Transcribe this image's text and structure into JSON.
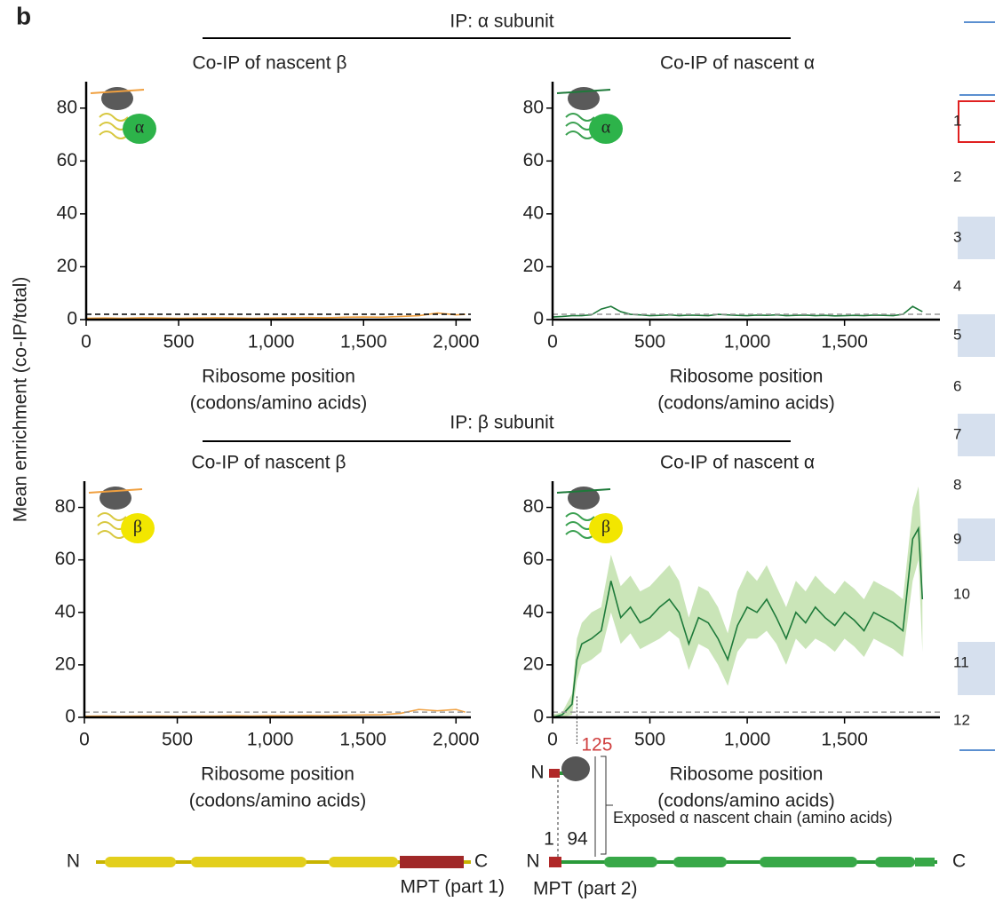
{
  "panel_label": "b",
  "groups": [
    "IP: α subunit",
    "IP: β subunit"
  ],
  "ylabel": "Mean enrichment (co-IP/total)",
  "chart_data": [
    {
      "type": "line",
      "title": "Co-IP of nascent β",
      "xlabel": [
        "Ribosome position",
        "(codons/amino acids)"
      ],
      "icon_label": "α",
      "icon_color": "#2db34a",
      "x": [
        0,
        100,
        200,
        300,
        400,
        500,
        600,
        700,
        800,
        900,
        1000,
        1100,
        1200,
        1300,
        1400,
        1500,
        1600,
        1700,
        1800,
        1900,
        2000,
        2050
      ],
      "series": [
        {
          "color": "#f0a040",
          "values": [
            0.5,
            0.6,
            0.5,
            0.7,
            0.6,
            0.5,
            0.6,
            0.7,
            0.6,
            0.5,
            0.6,
            0.7,
            0.8,
            0.7,
            0.9,
            1.0,
            0.9,
            1.2,
            1.5,
            2.5,
            1.8,
            2.0
          ]
        }
      ],
      "reference_line": 2,
      "reference_color": "#000000",
      "xlim": [
        0,
        2080
      ],
      "ylim": [
        0,
        90
      ],
      "xticks": [
        0,
        500,
        {
          "value": 1000,
          "label": "1,000"
        },
        {
          "value": 1500,
          "label": "1,500"
        },
        {
          "value": 2000,
          "label": "2,000"
        }
      ],
      "yticks": [
        0,
        20,
        40,
        60,
        80
      ]
    },
    {
      "type": "line",
      "title": "Co-IP of nascent α",
      "xlabel": [
        "Ribosome position",
        "(codons/amino acids)"
      ],
      "icon_label": "α",
      "icon_color": "#2db34a",
      "x": [
        0,
        50,
        100,
        150,
        200,
        250,
        300,
        350,
        400,
        450,
        500,
        550,
        600,
        650,
        700,
        750,
        800,
        850,
        900,
        950,
        1000,
        1050,
        1100,
        1150,
        1200,
        1250,
        1300,
        1350,
        1400,
        1450,
        1500,
        1550,
        1600,
        1650,
        1700,
        1750,
        1800,
        1850,
        1900
      ],
      "series": [
        {
          "color": "#1e7a3a",
          "values": [
            1,
            1.2,
            1.5,
            1.5,
            1.8,
            4,
            5,
            3,
            2,
            1.8,
            1.5,
            1.6,
            1.8,
            1.5,
            1.7,
            1.6,
            1.5,
            2,
            1.8,
            1.6,
            1.5,
            1.7,
            1.6,
            1.8,
            1.5,
            1.6,
            1.7,
            1.5,
            1.6,
            1.4,
            1.5,
            1.6,
            1.5,
            1.7,
            1.6,
            1.5,
            2,
            5,
            3
          ]
        }
      ],
      "reference_line": 2,
      "reference_color": "#999999",
      "xlim": [
        0,
        1990
      ],
      "ylim": [
        0,
        90
      ],
      "xticks": [
        0,
        500,
        {
          "value": 1000,
          "label": "1,000"
        },
        {
          "value": 1500,
          "label": "1,500"
        }
      ],
      "yticks": [
        0,
        20,
        40,
        60,
        80
      ]
    },
    {
      "type": "line",
      "title": "Co-IP of nascent β",
      "xlabel": [
        "Ribosome position",
        "(codons/amino acids)"
      ],
      "icon_label": "β",
      "icon_color": "#f2e600",
      "x": [
        0,
        100,
        200,
        300,
        400,
        500,
        600,
        700,
        800,
        900,
        1000,
        1100,
        1200,
        1300,
        1400,
        1500,
        1600,
        1700,
        1800,
        1900,
        2000,
        2050
      ],
      "series": [
        {
          "color": "#f0a040",
          "values": [
            0.4,
            0.5,
            0.4,
            0.5,
            0.5,
            0.4,
            0.5,
            0.5,
            0.6,
            0.5,
            0.6,
            0.6,
            0.7,
            0.6,
            0.8,
            0.9,
            1.0,
            1.5,
            3,
            2.5,
            3,
            2
          ]
        }
      ],
      "reference_line": 2,
      "reference_color": "#999999",
      "xlim": [
        0,
        2080
      ],
      "ylim": [
        0,
        90
      ],
      "xticks": [
        0,
        500,
        {
          "value": 1000,
          "label": "1,000"
        },
        {
          "value": 1500,
          "label": "1,500"
        },
        {
          "value": 2000,
          "label": "2,000"
        }
      ],
      "yticks": [
        0,
        20,
        40,
        60,
        80
      ]
    },
    {
      "type": "line",
      "title": "Co-IP of nascent α",
      "xlabel": [
        "Ribosome position",
        "(codons/amino acids)"
      ],
      "icon_label": "β",
      "icon_color": "#f2e600",
      "x": [
        0,
        50,
        100,
        125,
        150,
        200,
        250,
        300,
        350,
        400,
        450,
        500,
        550,
        600,
        650,
        700,
        750,
        800,
        850,
        900,
        950,
        1000,
        1050,
        1100,
        1150,
        1200,
        1250,
        1300,
        1350,
        1400,
        1450,
        1500,
        1550,
        1600,
        1650,
        1700,
        1750,
        1800,
        1850,
        1880,
        1900
      ],
      "series": [
        {
          "color": "#1e7a3a",
          "band_color": "#b8dca0",
          "values": [
            0,
            1,
            5,
            22,
            28,
            30,
            33,
            52,
            38,
            42,
            36,
            38,
            42,
            45,
            40,
            28,
            38,
            36,
            30,
            22,
            35,
            42,
            40,
            45,
            38,
            30,
            40,
            36,
            42,
            38,
            35,
            40,
            37,
            33,
            40,
            38,
            36,
            33,
            68,
            72,
            45
          ],
          "lower": [
            0,
            0,
            1,
            14,
            20,
            22,
            25,
            40,
            28,
            32,
            26,
            28,
            30,
            33,
            30,
            18,
            28,
            26,
            20,
            12,
            25,
            30,
            30,
            33,
            28,
            20,
            30,
            26,
            30,
            28,
            25,
            30,
            27,
            23,
            30,
            28,
            26,
            23,
            52,
            60,
            25
          ],
          "upper": [
            1,
            2,
            9,
            30,
            36,
            40,
            42,
            62,
            50,
            54,
            48,
            50,
            54,
            58,
            52,
            38,
            50,
            48,
            42,
            32,
            48,
            56,
            52,
            58,
            50,
            42,
            52,
            48,
            54,
            50,
            47,
            52,
            49,
            45,
            52,
            50,
            48,
            45,
            80,
            88,
            62
          ]
        }
      ],
      "reference_line": 2,
      "reference_color": "#999999",
      "marker": 125,
      "marker_color": "#d04040",
      "xlim": [
        0,
        1990
      ],
      "ylim": [
        0,
        90
      ],
      "xticks": [
        0,
        500,
        {
          "value": 1000,
          "label": "1,000"
        },
        {
          "value": 1500,
          "label": "1,500"
        }
      ],
      "yticks": [
        0,
        20,
        40,
        60,
        80
      ]
    }
  ],
  "diagram_left": {
    "n": "N",
    "c": "C",
    "label": "MPT (part 1)"
  },
  "diagram_right": {
    "n": "N",
    "c": "C",
    "label": "MPT (part 2)",
    "small_n": "N",
    "start": "1",
    "end": "94",
    "exposed": "Exposed α nascent chain (amino acids)"
  },
  "side_table": {
    "rows": [
      "1",
      "2",
      "3",
      "4",
      "5",
      "6",
      "7",
      "8",
      "9",
      "10",
      "11",
      "12"
    ]
  }
}
